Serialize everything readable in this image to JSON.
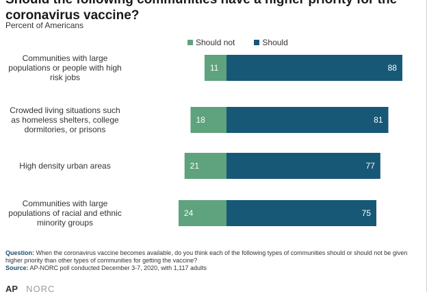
{
  "header": {
    "title": "Should the following communities have a higher priority for the coronavirus vaccine?",
    "subtitle": "Percent of Americans"
  },
  "colors": {
    "should_not": "#5fa27e",
    "should": "#175877"
  },
  "chart_data": {
    "type": "bar",
    "orientation": "horizontal-diverging",
    "categories": [
      [
        "Communities with large",
        "populations or people with high",
        "risk jobs"
      ],
      [
        "Crowded living situations such",
        "as homeless shelters, college",
        "dormitories, or prisons"
      ],
      [
        "High density urban areas"
      ],
      [
        "Communities with large",
        "populations of racial and ethnic",
        "minority groups"
      ]
    ],
    "series": [
      {
        "name": "Should not",
        "values": [
          11,
          18,
          21,
          24
        ]
      },
      {
        "name": "Should",
        "values": [
          88,
          81,
          77,
          75
        ]
      }
    ],
    "legend_position": "top",
    "grid": false
  },
  "footnote": {
    "question_label": "Question:",
    "question_text": "When the coronavirus vaccine becomes available, do you think each of the following types of communities should or should not be given higher priority than other types of communities for getting the vaccine?",
    "source_label": "Source:",
    "source_text": "AP-NORC poll conducted December 3-7, 2020, with 1,117 adults"
  },
  "logos": {
    "ap": "AP",
    "norc": "NORC"
  }
}
